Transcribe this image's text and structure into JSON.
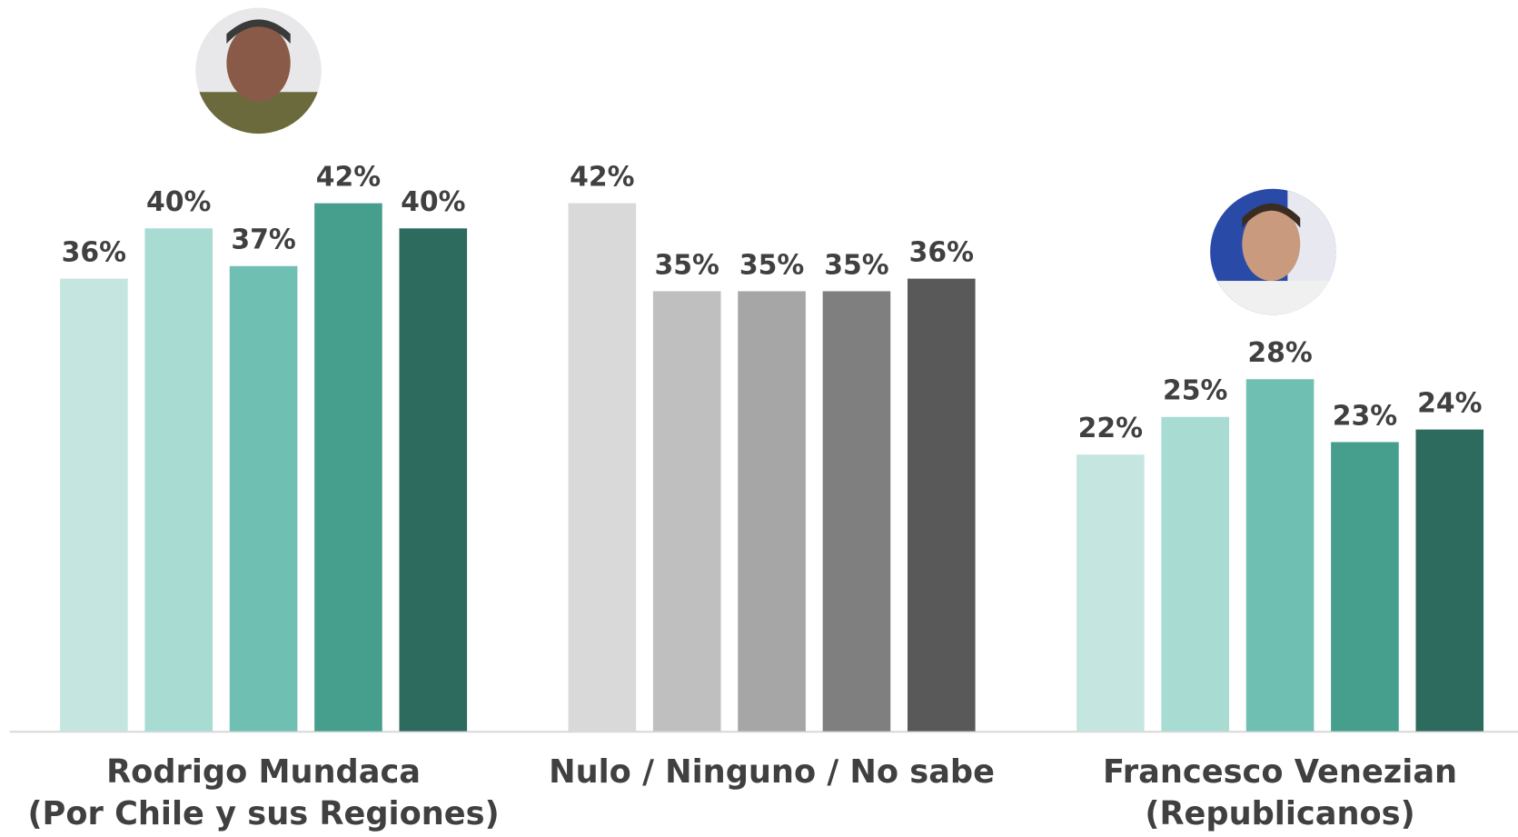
{
  "chart_data": {
    "type": "bar",
    "categories": [
      "Rodrigo Mundaca\n(Por Chile y sus Regiones)",
      "Nulo / Ninguno / No sabe",
      "Francesco Venezian\n(Republicanos)"
    ],
    "series": [
      {
        "values": [
          36,
          42,
          22
        ],
        "value_labels": [
          "36%",
          "42%",
          "22%"
        ],
        "colors": [
          "#c5e6e0",
          "#d9d9d9",
          "#c5e6e0"
        ]
      },
      {
        "values": [
          40,
          35,
          25
        ],
        "value_labels": [
          "40%",
          "35%",
          "25%"
        ],
        "colors": [
          "#a8dbd1",
          "#bfbfbf",
          "#a8dbd1"
        ]
      },
      {
        "values": [
          37,
          35,
          28
        ],
        "value_labels": [
          "37%",
          "35%",
          "28%"
        ],
        "colors": [
          "#6fc0b2",
          "#a6a6a6",
          "#6fc0b2"
        ]
      },
      {
        "values": [
          42,
          35,
          23
        ],
        "value_labels": [
          "42%",
          "35%",
          "23%"
        ],
        "colors": [
          "#469f8d",
          "#7f7f7f",
          "#469f8d"
        ]
      },
      {
        "values": [
          40,
          36,
          24
        ],
        "value_labels": [
          "40%",
          "36%",
          "24%"
        ],
        "colors": [
          "#2e6b5f",
          "#595959",
          "#2e6b5f"
        ]
      }
    ]
  }
}
